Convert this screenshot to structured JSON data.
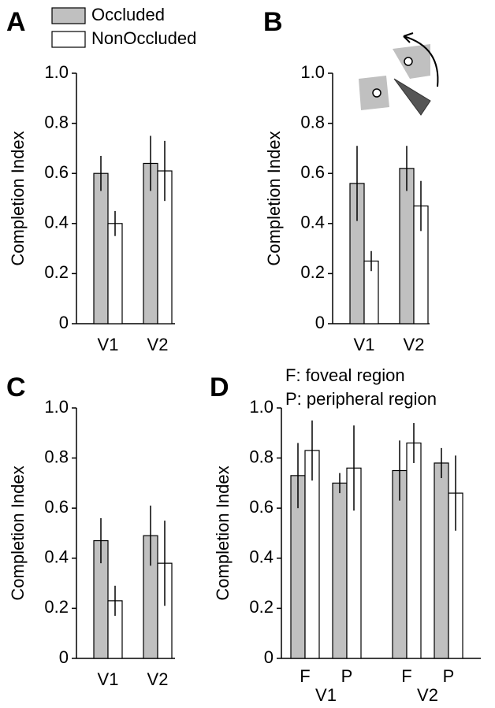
{
  "chart_data": [
    {
      "type": "bar",
      "panel_label": "A",
      "ylabel": "Completion Index",
      "categories": [
        "V1",
        "V2"
      ],
      "series": [
        {
          "name": "Occluded",
          "color": "#c0c0c0",
          "values": [
            0.6,
            0.64
          ],
          "errors": [
            0.07,
            0.11
          ]
        },
        {
          "name": "NonOccluded",
          "color": "#ffffff",
          "values": [
            0.4,
            0.61
          ],
          "errors": [
            0.05,
            0.12
          ]
        }
      ],
      "ylim": [
        0,
        1
      ],
      "yticks": [
        0,
        0.2,
        0.4,
        0.6,
        0.8,
        {
          "value": 1,
          "label": "1.0"
        }
      ]
    },
    {
      "type": "bar",
      "panel_label": "B",
      "ylabel": "Completion Index",
      "categories": [
        "V1",
        "V2"
      ],
      "series": [
        {
          "color": "#c0c0c0",
          "values": [
            0.56,
            0.62
          ],
          "errors": [
            0.15,
            0.09
          ]
        },
        {
          "color": "#ffffff",
          "values": [
            0.25,
            0.47
          ],
          "errors": [
            0.04,
            0.1
          ]
        }
      ],
      "ylim": [
        0,
        1
      ],
      "yticks": [
        0,
        0.2,
        0.4,
        0.6,
        0.8,
        {
          "value": 1,
          "label": "1.0"
        }
      ]
    },
    {
      "type": "bar",
      "panel_label": "C",
      "ylabel": "Completion Index",
      "categories": [
        "V1",
        "V2"
      ],
      "series": [
        {
          "color": "#c0c0c0",
          "values": [
            0.47,
            0.49
          ],
          "errors": [
            0.09,
            0.12
          ]
        },
        {
          "color": "#ffffff",
          "values": [
            0.23,
            0.38
          ],
          "errors": [
            0.06,
            0.17
          ]
        }
      ],
      "ylim": [
        0,
        1
      ],
      "yticks": [
        0,
        0.2,
        0.4,
        0.6,
        0.8,
        {
          "value": 1,
          "label": "1.0"
        }
      ]
    },
    {
      "type": "bar",
      "panel_label": "D",
      "ylabel": "Completion Index",
      "annotations": [
        "F: foveal region",
        "P: peripheral region"
      ],
      "categories": [
        "F",
        "P",
        "F",
        "P"
      ],
      "group_labels": [
        "V1",
        "V2"
      ],
      "series": [
        {
          "color": "#c0c0c0",
          "values": [
            0.73,
            0.7,
            0.75,
            0.78
          ],
          "errors": [
            0.13,
            0.04,
            0.12,
            0.06
          ]
        },
        {
          "color": "#ffffff",
          "values": [
            0.83,
            0.76,
            0.86,
            0.66
          ],
          "errors": [
            0.12,
            0.17,
            0.08,
            0.15
          ]
        }
      ],
      "ylim": [
        0,
        1
      ],
      "yticks": [
        0,
        0.2,
        0.4,
        0.6,
        0.8,
        {
          "value": 1,
          "label": "1.0"
        }
      ]
    }
  ]
}
